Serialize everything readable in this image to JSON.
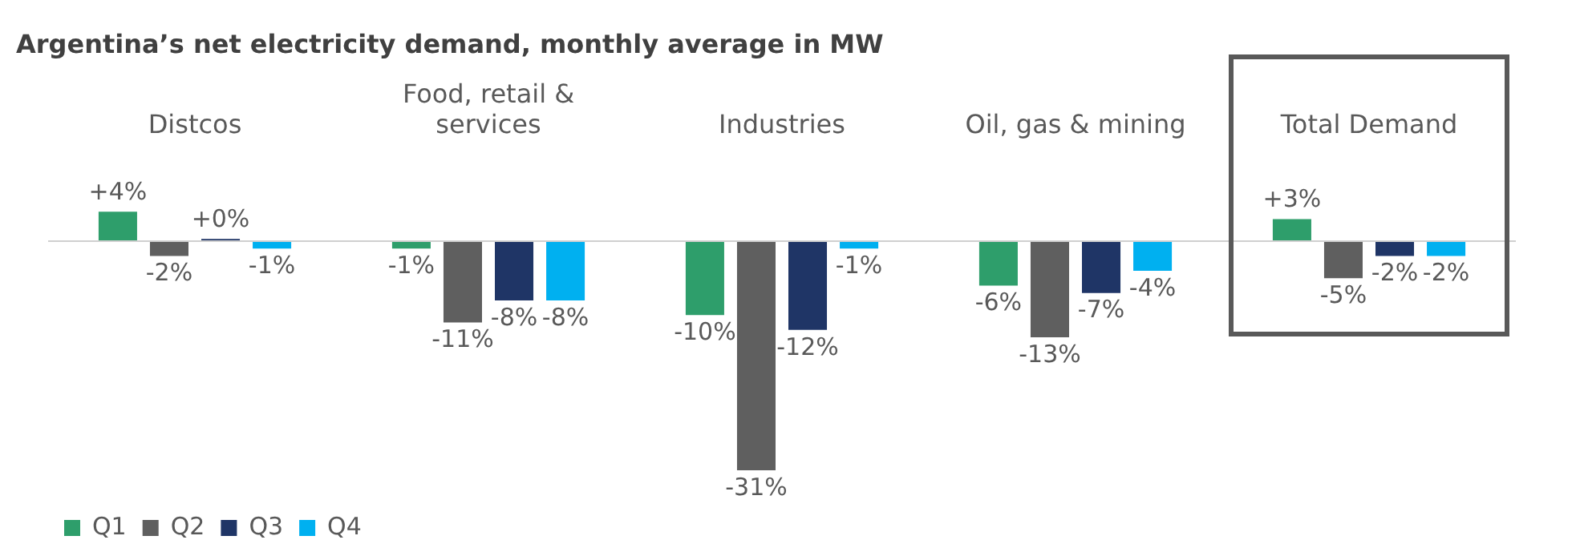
{
  "chart_data": {
    "type": "bar",
    "title": "Argentina’s net electricity demand, monthly average in MW",
    "categories": [
      "Distcos",
      "Food, retail & services",
      "Industries",
      "Oil, gas & mining",
      "Total Demand"
    ],
    "series": [
      {
        "name": "Q1",
        "color": "#2e9e6b",
        "values": [
          4,
          -1,
          -10,
          -6,
          3
        ],
        "value_labels": [
          "+4%",
          "-1%",
          "-10%",
          "-6%",
          "+3%"
        ]
      },
      {
        "name": "Q2",
        "color": "#5f5f5f",
        "values": [
          -2,
          -11,
          -31,
          -13,
          -5
        ],
        "value_labels": [
          "-2%",
          "-11%",
          "-31%",
          "-13%",
          "-5%"
        ]
      },
      {
        "name": "Q3",
        "color": "#1f3566",
        "values": [
          0.3,
          -8,
          -12,
          -7,
          -2
        ],
        "value_labels": [
          "+0%",
          "-8%",
          "-12%",
          "-7%",
          "-2%"
        ]
      },
      {
        "name": "Q4",
        "color": "#00b0f0",
        "values": [
          -1,
          -8,
          -1,
          -4,
          -2
        ],
        "value_labels": [
          "-1%",
          "-8%",
          "-1%",
          "-4%",
          "-2%"
        ]
      }
    ],
    "legend": "bottom left"
  }
}
